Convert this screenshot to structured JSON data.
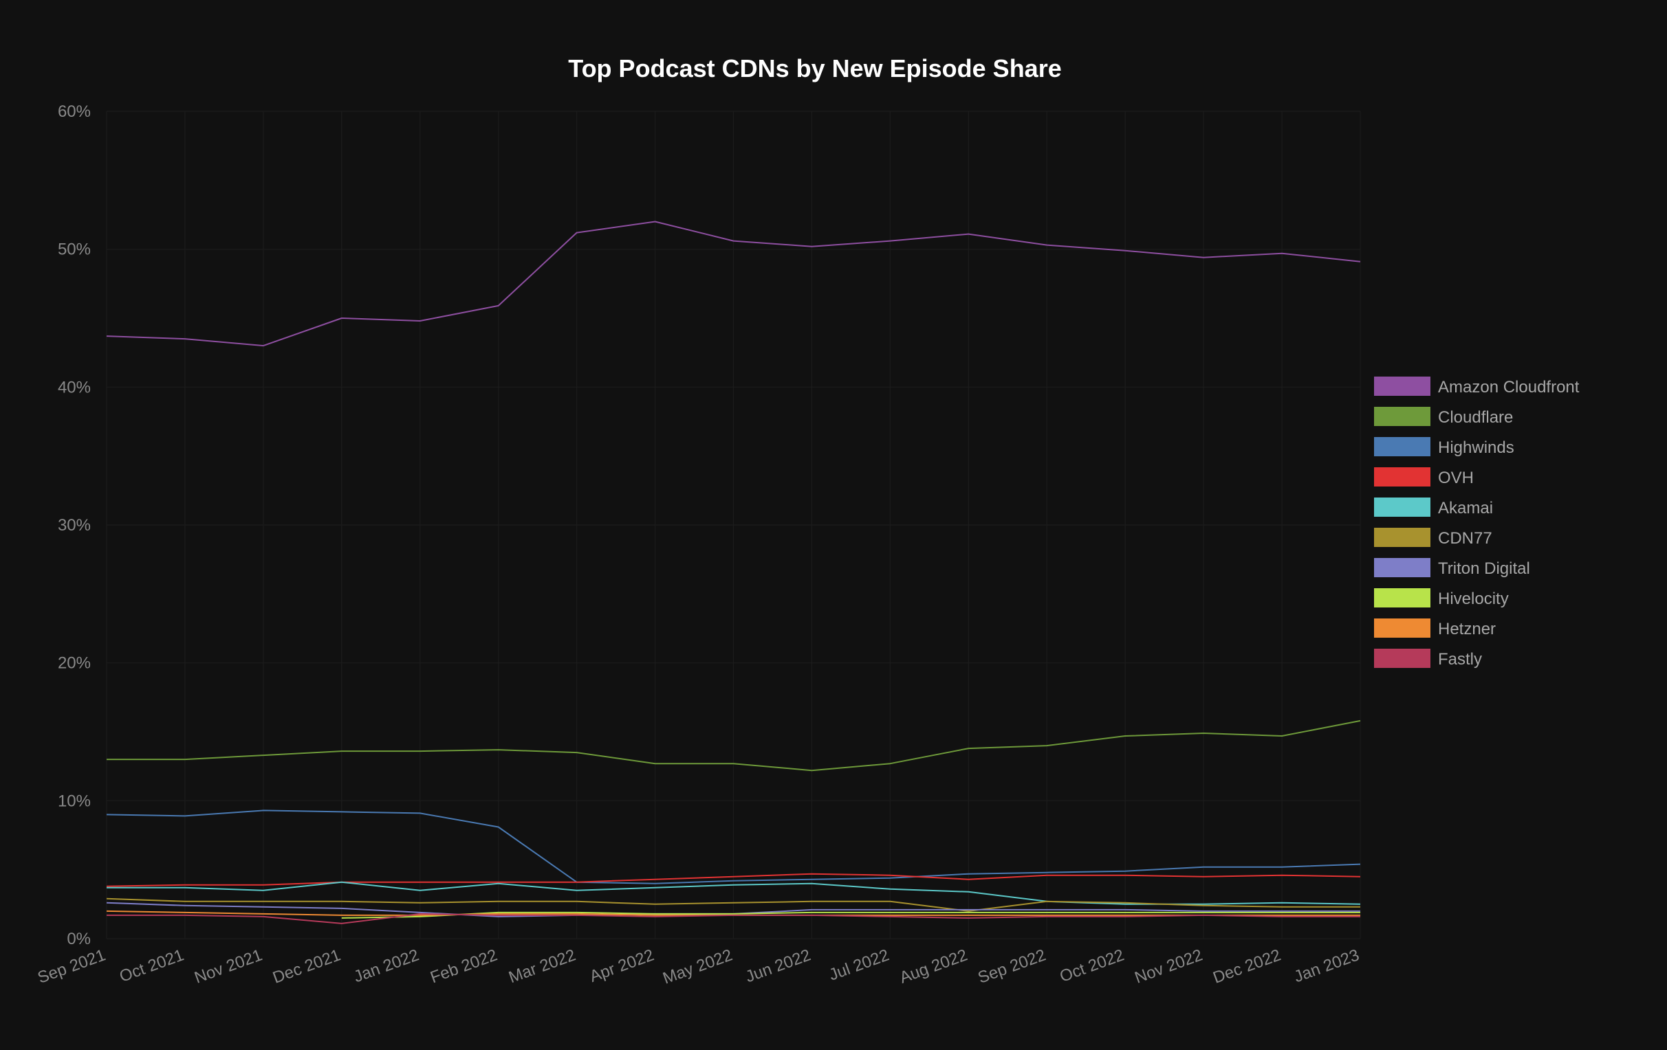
{
  "chart_data": {
    "type": "line",
    "title": "Top Podcast CDNs by New Episode Share",
    "xlabel": "",
    "ylabel": "",
    "x": [
      "Sep 2021",
      "Oct 2021",
      "Nov 2021",
      "Dec 2021",
      "Jan 2022",
      "Feb 2022",
      "Mar 2022",
      "Apr 2022",
      "May 2022",
      "Jun 2022",
      "Jul 2022",
      "Aug 2022",
      "Sep 2022",
      "Oct 2022",
      "Nov 2022",
      "Dec 2022",
      "Jan 2023"
    ],
    "ylim": [
      0,
      60
    ],
    "yticks": [
      "0%",
      "10%",
      "20%",
      "30%",
      "40%",
      "50%",
      "60%"
    ],
    "grid": true,
    "legend_position": "right",
    "series": [
      {
        "name": "Amazon Cloudfront",
        "color": "#8e4fa1",
        "values": [
          43.7,
          43.5,
          43.0,
          45.0,
          44.8,
          45.9,
          51.2,
          52.0,
          50.6,
          50.2,
          50.6,
          51.1,
          50.3,
          49.9,
          49.4,
          49.7,
          49.1
        ]
      },
      {
        "name": "Cloudflare",
        "color": "#6e9a3a",
        "values": [
          13.0,
          13.0,
          13.3,
          13.6,
          13.6,
          13.7,
          13.5,
          12.7,
          12.7,
          12.2,
          12.7,
          13.8,
          14.0,
          14.7,
          14.9,
          14.7,
          15.8
        ]
      },
      {
        "name": "Highwinds",
        "color": "#4a7ab3",
        "values": [
          9.0,
          8.9,
          9.3,
          9.2,
          9.1,
          8.1,
          4.1,
          4.0,
          4.2,
          4.3,
          4.4,
          4.7,
          4.8,
          4.9,
          5.2,
          5.2,
          5.4
        ]
      },
      {
        "name": "OVH",
        "color": "#e23333",
        "values": [
          3.8,
          3.9,
          3.9,
          4.1,
          4.1,
          4.1,
          4.1,
          4.3,
          4.5,
          4.7,
          4.6,
          4.3,
          4.6,
          4.6,
          4.5,
          4.6,
          4.5
        ]
      },
      {
        "name": "Akamai",
        "color": "#5cc9c9",
        "values": [
          3.7,
          3.7,
          3.5,
          4.1,
          3.5,
          4.0,
          3.5,
          3.7,
          3.9,
          4.0,
          3.6,
          3.4,
          2.7,
          2.5,
          2.5,
          2.6,
          2.5
        ]
      },
      {
        "name": "CDN77",
        "color": "#a8922e",
        "values": [
          2.9,
          2.7,
          2.7,
          2.7,
          2.6,
          2.7,
          2.7,
          2.5,
          2.6,
          2.7,
          2.7,
          2.0,
          2.7,
          2.6,
          2.4,
          2.3,
          2.3
        ]
      },
      {
        "name": "Triton Digital",
        "color": "#7e7ec8",
        "values": [
          2.6,
          2.4,
          2.3,
          2.2,
          1.9,
          1.6,
          1.7,
          1.8,
          1.8,
          2.1,
          2.1,
          2.1,
          2.1,
          2.1,
          2.0,
          2.0,
          2.0
        ]
      },
      {
        "name": "Hivelocity",
        "color": "#b8e34a",
        "values": [
          null,
          null,
          null,
          1.5,
          1.6,
          1.9,
          1.9,
          1.8,
          1.8,
          1.9,
          1.9,
          1.9,
          1.9,
          1.9,
          1.9,
          1.9,
          1.9
        ]
      },
      {
        "name": "Hetzner",
        "color": "#ee8a33",
        "values": [
          2.0,
          1.9,
          1.8,
          1.7,
          1.7,
          1.8,
          1.8,
          1.7,
          1.7,
          1.7,
          1.7,
          1.7,
          1.7,
          1.7,
          1.7,
          1.7,
          1.7
        ]
      },
      {
        "name": "Fastly",
        "color": "#b53a5a",
        "values": [
          1.7,
          1.7,
          1.6,
          1.1,
          1.8,
          1.7,
          1.7,
          1.6,
          1.7,
          1.7,
          1.6,
          1.5,
          1.6,
          1.6,
          1.7,
          1.6,
          1.6
        ]
      }
    ]
  }
}
